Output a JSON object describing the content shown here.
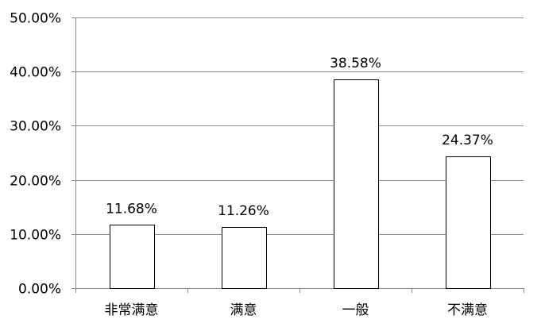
{
  "chart_data": {
    "type": "bar",
    "title": "",
    "xlabel": "",
    "ylabel": "",
    "categories": [
      "非常满意",
      "满意",
      "一般",
      "不满意"
    ],
    "values": [
      11.68,
      11.26,
      38.58,
      24.37
    ],
    "data_labels": [
      "11.68%",
      "11.26%",
      "38.58%",
      "24.37%"
    ],
    "ylim": [
      0,
      50
    ],
    "yticks": [
      0,
      10,
      20,
      30,
      40,
      50
    ],
    "ytick_labels": [
      "0.00%",
      "10.00%",
      "20.00%",
      "30.00%",
      "40.00%",
      "50.00%"
    ],
    "grid": true,
    "legend": "none",
    "bar_fill": "#ffffff",
    "bar_stroke": "#000000",
    "grid_color": "#868686"
  }
}
